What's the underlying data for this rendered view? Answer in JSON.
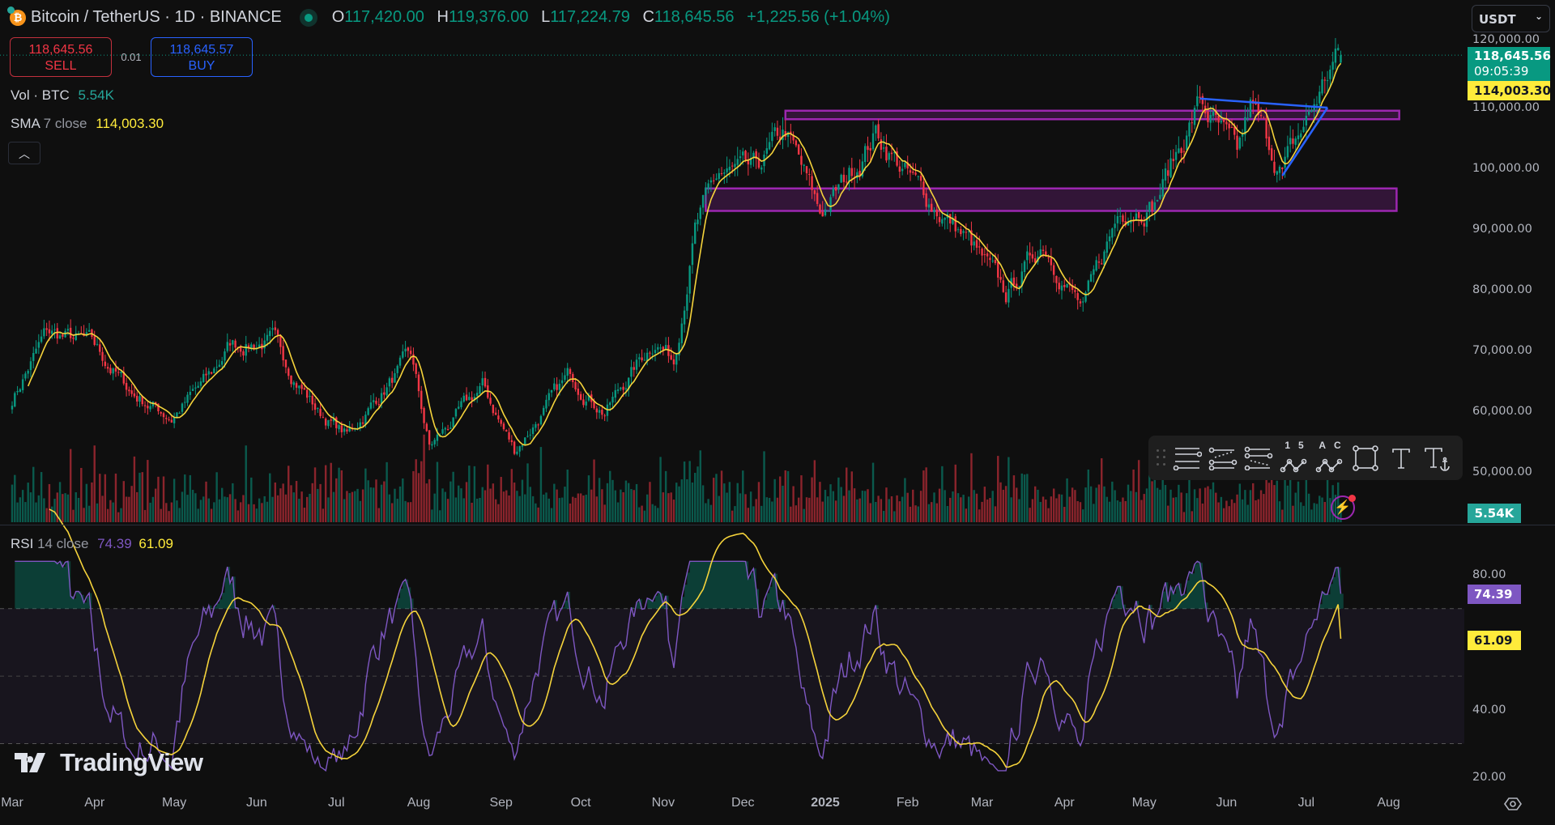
{
  "header": {
    "symbol_title": "Bitcoin / TetherUS · 1D · BINANCE",
    "coin_icon": "bitcoin-icon",
    "ohlc": [
      {
        "key": "O",
        "value": "117,420.00"
      },
      {
        "key": "H",
        "value": "119,376.00"
      },
      {
        "key": "L",
        "value": "117,224.79"
      },
      {
        "key": "C",
        "value": "118,645.56"
      }
    ],
    "change": "+1,225.56 (+1.04%)"
  },
  "trade": {
    "sell_price": "118,645.56",
    "sell_label": "SELL",
    "spread": "0.01",
    "buy_price": "118,645.57",
    "buy_label": "BUY"
  },
  "legends": {
    "vol_label": "Vol · BTC",
    "vol_value": "5.54K",
    "sma_label": "SMA",
    "sma_params": "7 close",
    "sma_value": "114,003.30"
  },
  "rsi": {
    "label": "RSI",
    "params": "14 close",
    "value": "74.39",
    "ma_value": "61.09"
  },
  "price_axis": {
    "currency": "USDT",
    "ticks": [
      {
        "label": "120,000.00",
        "value": 120000
      },
      {
        "label": "110,000.00",
        "value": 110000
      },
      {
        "label": "100,000.00",
        "value": 100000
      },
      {
        "label": "90,000.00",
        "value": 90000
      },
      {
        "label": "80,000.00",
        "value": 80000
      },
      {
        "label": "70,000.00",
        "value": 70000
      },
      {
        "label": "60,000.00",
        "value": 60000
      },
      {
        "label": "50,000.00",
        "value": 50000
      }
    ],
    "last_price": "118,645.56",
    "countdown": "09:05:39",
    "sma_tag": "114,003.30",
    "vol_tag": "5.54K"
  },
  "rsi_axis": {
    "ticks": [
      {
        "label": "80.00",
        "value": 80
      },
      {
        "label": "40.00",
        "value": 40
      },
      {
        "label": "20.00",
        "value": 20
      }
    ],
    "rsi_tag": "74.39",
    "ma_tag": "61.09"
  },
  "time_axis": {
    "labels": [
      {
        "label": "Mar",
        "date": "2024-03-01"
      },
      {
        "label": "Apr",
        "date": "2024-04-01"
      },
      {
        "label": "May",
        "date": "2024-05-01"
      },
      {
        "label": "Jun",
        "date": "2024-06-01"
      },
      {
        "label": "Jul",
        "date": "2024-07-01"
      },
      {
        "label": "Aug",
        "date": "2024-08-01"
      },
      {
        "label": "Sep",
        "date": "2024-09-01"
      },
      {
        "label": "Oct",
        "date": "2024-10-01"
      },
      {
        "label": "Nov",
        "date": "2024-11-01"
      },
      {
        "label": "Dec",
        "date": "2024-12-01"
      },
      {
        "label": "2025",
        "date": "2025-01-01"
      },
      {
        "label": "Feb",
        "date": "2025-02-01"
      },
      {
        "label": "Mar",
        "date": "2025-03-01"
      },
      {
        "label": "Apr",
        "date": "2025-04-01"
      },
      {
        "label": "May",
        "date": "2025-05-01"
      },
      {
        "label": "Jun",
        "date": "2025-06-01"
      },
      {
        "label": "Jul",
        "date": "2025-07-01"
      },
      {
        "label": "Aug",
        "date": "2025-08-01"
      }
    ]
  },
  "toolbar": {
    "tools": [
      {
        "name": "horizontal-lines-tool"
      },
      {
        "name": "parallel-channel-tool"
      },
      {
        "name": "regression-channel-tool"
      },
      {
        "name": "elliott-wave-tool",
        "label": "15"
      },
      {
        "name": "abc-pattern-tool",
        "label": "AC"
      },
      {
        "name": "rectangle-tool"
      },
      {
        "name": "text-tool"
      },
      {
        "name": "anchored-text-tool"
      }
    ]
  },
  "watermark": "TradingView",
  "colors": {
    "up": "#089981",
    "down": "#f23645",
    "sma": "#f5d33b",
    "rsi": "#7e57c2",
    "rsi_ma": "#f5d33b",
    "zone": "#9c27b0",
    "trendline": "#2962ff",
    "background": "#0f0f0f"
  },
  "chart_data": {
    "type": "candlestick",
    "price_range": [
      50000,
      120000
    ],
    "rsi_range": [
      20,
      80
    ],
    "close_keypoints": [
      [
        "2024-03-01",
        62000
      ],
      [
        "2024-03-14",
        73000
      ],
      [
        "2024-03-31",
        71000
      ],
      [
        "2024-04-15",
        63000
      ],
      [
        "2024-04-30",
        59000
      ],
      [
        "2024-05-15",
        66000
      ],
      [
        "2024-05-22",
        71000
      ],
      [
        "2024-06-07",
        71500
      ],
      [
        "2024-06-24",
        60000
      ],
      [
        "2024-07-05",
        56000
      ],
      [
        "2024-07-29",
        69000
      ],
      [
        "2024-08-05",
        54000
      ],
      [
        "2024-08-25",
        64000
      ],
      [
        "2024-09-06",
        53500
      ],
      [
        "2024-09-27",
        66000
      ],
      [
        "2024-10-10",
        60000
      ],
      [
        "2024-10-29",
        72000
      ],
      [
        "2024-11-05",
        68500
      ],
      [
        "2024-11-13",
        90000
      ],
      [
        "2024-11-22",
        99000
      ],
      [
        "2024-12-05",
        99000
      ],
      [
        "2024-12-17",
        106000
      ],
      [
        "2024-12-30",
        92500
      ],
      [
        "2025-01-07",
        97000
      ],
      [
        "2025-01-20",
        106000
      ],
      [
        "2025-02-03",
        97500
      ],
      [
        "2025-02-24",
        88000
      ],
      [
        "2025-03-10",
        79000
      ],
      [
        "2025-03-24",
        88000
      ],
      [
        "2025-04-08",
        76500
      ],
      [
        "2025-04-22",
        93500
      ],
      [
        "2025-05-05",
        94500
      ],
      [
        "2025-05-22",
        111000
      ],
      [
        "2025-06-05",
        101500
      ],
      [
        "2025-06-10",
        110000
      ],
      [
        "2025-06-22",
        99500
      ],
      [
        "2025-07-03",
        109500
      ],
      [
        "2025-07-11",
        117500
      ],
      [
        "2025-07-14",
        118645.56
      ]
    ],
    "last_candle": {
      "open": 117420.0,
      "high": 119376.0,
      "low": 117224.79,
      "close": 118645.56
    },
    "zones": [
      {
        "from": "2024-12-17",
        "to": "2025-08-05",
        "low": 108100,
        "high": 109500
      },
      {
        "from": "2024-11-17",
        "to": "2025-08-04",
        "low": 93000,
        "high": 96700
      }
    ],
    "trendlines": [
      {
        "from": [
          "2025-05-22",
          111500
        ],
        "to": [
          "2025-07-09",
          110000
        ]
      },
      {
        "from": [
          "2025-06-22",
          98800
        ],
        "to": [
          "2025-07-09",
          110000
        ]
      }
    ]
  }
}
